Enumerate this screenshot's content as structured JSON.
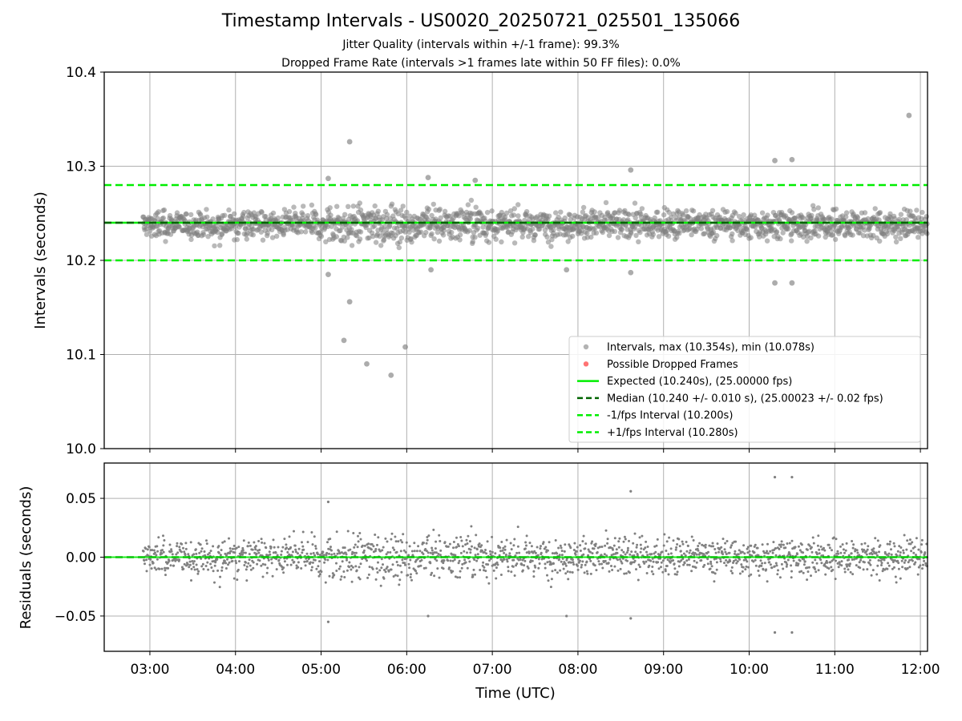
{
  "figure": {
    "title": "Timestamp Intervals - US0020_20250721_025501_135066",
    "subtitle_jitter": "Jitter Quality (intervals within +/-1 frame): 99.3%",
    "subtitle_dropped": "Dropped Frame Rate (intervals >1 frames late within 50 FF files): 0.0%"
  },
  "colors": {
    "points": "#808080",
    "dropped": "#ff4444",
    "expected": "#00ee00",
    "median": "#006400",
    "bounds": "#00ee00",
    "grid": "#b0b0b0"
  },
  "chart_data": [
    {
      "type": "scatter",
      "name": "intervals",
      "ylabel": "Intervals (seconds)",
      "xlabel": "",
      "xlim": [
        "02:28",
        "12:05"
      ],
      "ylim": [
        10.0,
        10.4
      ],
      "yticks": [
        "10.0",
        "10.1",
        "10.2",
        "10.3",
        "10.4"
      ],
      "grid": true,
      "legend_position": "lower right",
      "legend": [
        {
          "label": "Intervals, max (10.354s), min (10.078s)",
          "style": "marker-gray"
        },
        {
          "label": "Possible Dropped Frames",
          "style": "marker-red"
        },
        {
          "label": "Expected (10.240s), (25.00000 fps)",
          "style": "solid-green"
        },
        {
          "label": "Median (10.240 +/- 0.010 s), (25.00023 +/- 0.02 fps)",
          "style": "dashed-darkgreen"
        },
        {
          "label": "-1/fps Interval (10.200s)",
          "style": "dashed-green"
        },
        {
          "label": "+1/fps Interval (10.280s)",
          "style": "dashed-green"
        }
      ],
      "reference_lines": {
        "expected": 10.24,
        "median": 10.24,
        "lower": 10.2,
        "upper": 10.28
      },
      "bulk": {
        "x_start": "02:55",
        "x_end": "12:05",
        "center": 10.238,
        "spread": 0.011
      },
      "notable_points": [
        {
          "x": "11:52",
          "y": 10.354
        },
        {
          "x": "05:20",
          "y": 10.326
        },
        {
          "x": "10:18",
          "y": 10.306
        },
        {
          "x": "10:30",
          "y": 10.307
        },
        {
          "x": "08:37",
          "y": 10.296
        },
        {
          "x": "06:15",
          "y": 10.288
        },
        {
          "x": "05:05",
          "y": 10.287
        },
        {
          "x": "06:48",
          "y": 10.285
        },
        {
          "x": "05:05",
          "y": 10.185
        },
        {
          "x": "06:17",
          "y": 10.19
        },
        {
          "x": "07:52",
          "y": 10.19
        },
        {
          "x": "08:37",
          "y": 10.187
        },
        {
          "x": "10:18",
          "y": 10.176
        },
        {
          "x": "10:30",
          "y": 10.176
        },
        {
          "x": "05:20",
          "y": 10.156
        },
        {
          "x": "05:16",
          "y": 10.115
        },
        {
          "x": "05:32",
          "y": 10.09
        },
        {
          "x": "05:49",
          "y": 10.078
        },
        {
          "x": "05:59",
          "y": 10.108
        }
      ]
    },
    {
      "type": "scatter",
      "name": "residuals",
      "ylabel": "Residuals (seconds)",
      "xlabel": "Time (UTC)",
      "xlim": [
        "02:28",
        "12:05"
      ],
      "ylim": [
        -0.08,
        0.08
      ],
      "yticks": [
        "−0.05",
        "0.00",
        "0.05"
      ],
      "xticks": [
        "03:00",
        "04:00",
        "05:00",
        "06:00",
        "07:00",
        "08:00",
        "09:00",
        "10:00",
        "11:00",
        "12:00"
      ],
      "grid": true,
      "reference_lines": {
        "zero": 0.0
      },
      "notable_points": [
        {
          "x": "10:18",
          "y": 0.068
        },
        {
          "x": "10:30",
          "y": 0.068
        },
        {
          "x": "08:37",
          "y": 0.056
        },
        {
          "x": "05:05",
          "y": 0.047
        },
        {
          "x": "05:05",
          "y": -0.055
        },
        {
          "x": "06:15",
          "y": -0.05
        },
        {
          "x": "07:52",
          "y": -0.05
        },
        {
          "x": "08:37",
          "y": -0.052
        },
        {
          "x": "10:18",
          "y": -0.064
        },
        {
          "x": "10:30",
          "y": -0.064
        }
      ]
    }
  ]
}
